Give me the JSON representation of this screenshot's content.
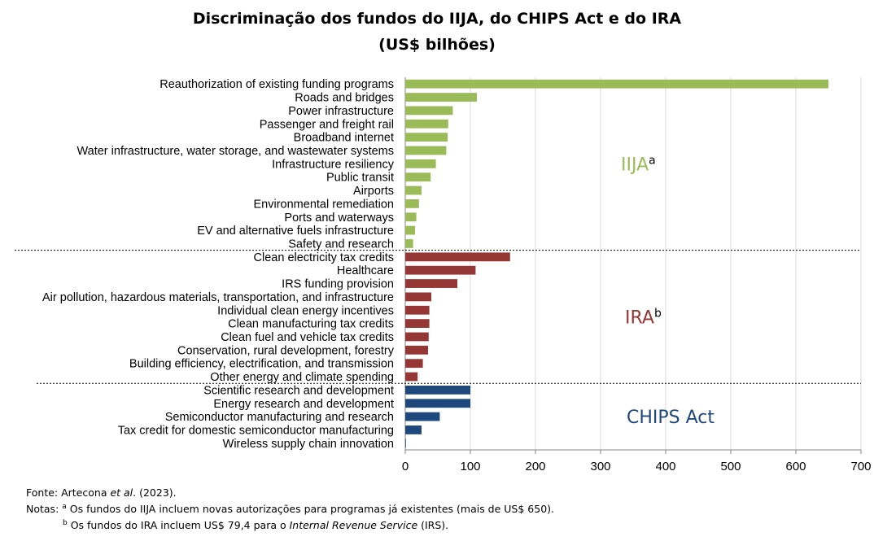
{
  "title_line1": "Discriminação dos fundos do IIJA, do CHIPS Act e do IRA",
  "title_line2": "(US$ bilhões)",
  "chart_data": {
    "type": "bar",
    "orientation": "horizontal",
    "xlim": [
      0,
      700
    ],
    "xticks": [
      0,
      100,
      200,
      300,
      400,
      500,
      600,
      700
    ],
    "grid": true,
    "groups": [
      {
        "name": "IIJA",
        "superscript": "a",
        "color": "#9bbb59",
        "label_color": "#9bbb59",
        "categories": [
          "Reauthorization of existing funding programs",
          "Roads and bridges",
          "Power infrastructure",
          "Passenger and freight rail",
          "Broadband internet",
          "Water infrastructure, water storage, and wastewater systems",
          "Infrastructure resiliency",
          "Public transit",
          "Airports",
          "Environmental remediation",
          "Ports and waterways",
          "EV and alternative fuels infrastructure",
          "Safety and research"
        ],
        "values": [
          650,
          110,
          73,
          66,
          65,
          63,
          47,
          39,
          25,
          21,
          17,
          15,
          12
        ]
      },
      {
        "name": "IRA",
        "superscript": "b",
        "color": "#953735",
        "label_color": "#953735",
        "categories": [
          "Clean electricity tax credits",
          "Healthcare",
          "IRS funding provision",
          "Air pollution, hazardous materials, transportation, and infrastructure",
          "Individual clean energy incentives",
          "Clean manufacturing tax credits",
          "Clean fuel and vehicle tax credits",
          "Conservation, rural development, forestry",
          "Building efficiency, electrification, and transmission",
          "Other energy and climate spending"
        ],
        "values": [
          161,
          108,
          80,
          40,
          37,
          37,
          36,
          35,
          27,
          19
        ]
      },
      {
        "name": "CHIPS Act",
        "superscript": "",
        "color": "#1f497d",
        "label_color": "#1f497d",
        "categories": [
          "Scientific research and development",
          "Energy research and development",
          "Semiconductor manufacturing and research",
          "Tax credit for domestic semiconductor manufacturing",
          "Wireless supply chain innovation"
        ],
        "values": [
          100,
          100,
          53,
          25,
          1
        ]
      }
    ]
  },
  "source_prefix": "Fonte: Artecona ",
  "source_italic": "et al",
  "source_suffix": ". (2023).",
  "notes_label": "Notas: ",
  "note_a_sup": "a",
  "note_a_text": " Os fundos do IIJA incluem novas autorizações para programas já existentes (mais de US$ 650).",
  "note_b_sup": "b",
  "note_b_prefix": " Os fundos do IRA incluem US$ 79,4 para o ",
  "note_b_italic": "Internal Revenue Service",
  "note_b_suffix": " (IRS)."
}
